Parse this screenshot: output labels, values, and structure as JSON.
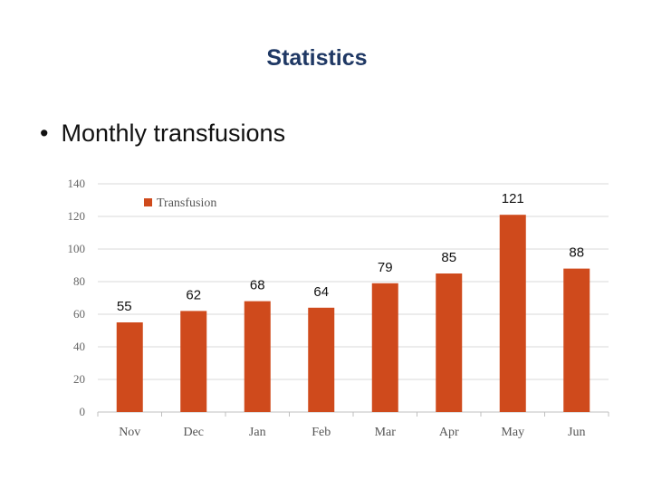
{
  "slide": {
    "title": "Statistics",
    "bullet": "Monthly transfusions"
  },
  "colors": {
    "bar": "#cf4a1c",
    "title": "#1f3864",
    "grid": "#d9d9d9"
  },
  "chart_data": {
    "type": "bar",
    "title": "",
    "xlabel": "",
    "ylabel": "",
    "categories": [
      "Nov",
      "Dec",
      "Jan",
      "Feb",
      "Mar",
      "Apr",
      "May",
      "Jun"
    ],
    "series": [
      {
        "name": "Transfusion",
        "values": [
          55,
          62,
          68,
          64,
          79,
          85,
          121,
          88
        ]
      }
    ],
    "ylim": [
      0,
      140
    ],
    "yticks": [
      0,
      20,
      40,
      60,
      80,
      100,
      120,
      140
    ],
    "grid": true,
    "legend": "top-left"
  }
}
